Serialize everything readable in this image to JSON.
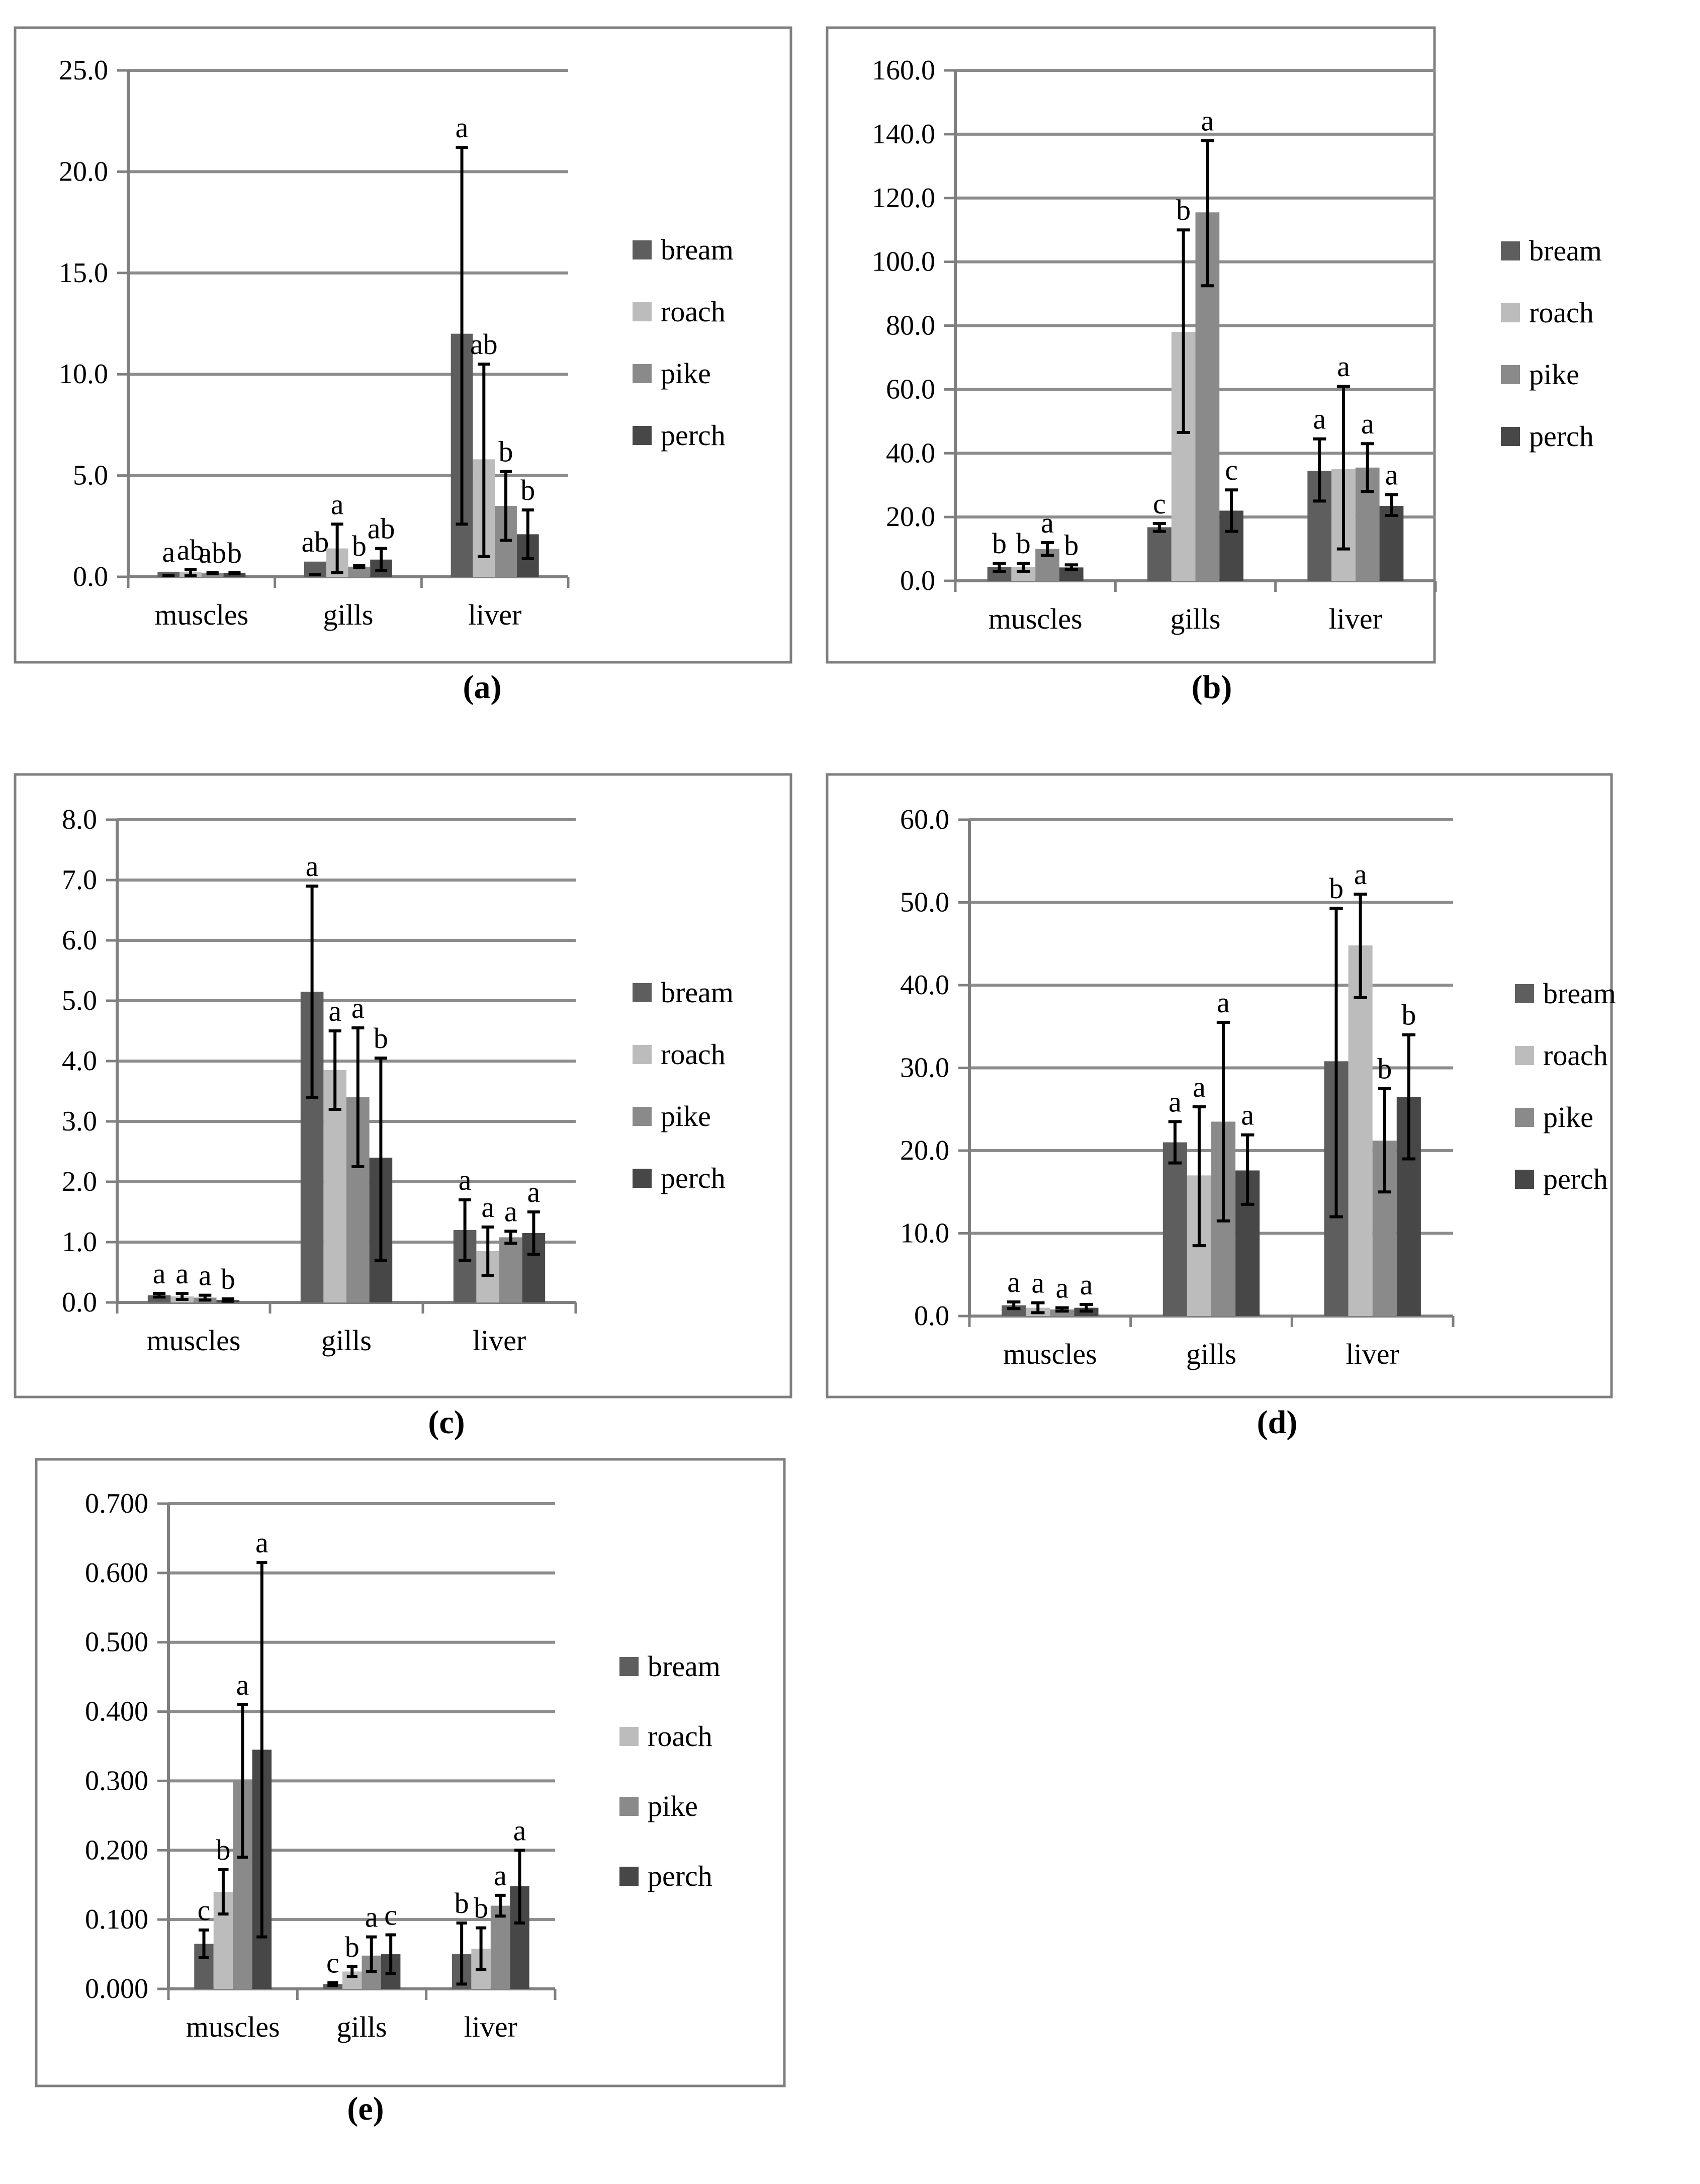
{
  "legend_entries": [
    "bream",
    "roach",
    "pike",
    "perch"
  ],
  "colors": {
    "bream": "#5e5e5e",
    "roach": "#bcbcbc",
    "pike": "#8a8a8a",
    "perch": "#474747",
    "grid": "#8c8c8c",
    "frame": "#7f7f7f",
    "axis": "#7f7f7f",
    "error_bar": "#000000"
  },
  "chart_data": [
    {
      "type": "bar",
      "panel": "(a)",
      "categories": [
        "muscles",
        "gills",
        "liver"
      ],
      "ylim": [
        0,
        25
      ],
      "ystep": 5,
      "ytick_labels": [
        "0.0",
        "5.0",
        "10.0",
        "15.0",
        "20.0",
        "25.0"
      ],
      "series": [
        {
          "name": "bream",
          "values": [
            0.25,
            0.75,
            12.0
          ],
          "err_low": [
            0.05,
            0.1,
            2.6
          ],
          "err_high": [
            0.05,
            0.1,
            21.2
          ],
          "labels": [
            "a",
            "ab",
            "a"
          ]
        },
        {
          "name": "roach",
          "values": [
            0.25,
            1.4,
            5.8
          ],
          "err_low": [
            0.05,
            0.2,
            1.0
          ],
          "err_high": [
            0.35,
            2.6,
            10.5
          ],
          "labels": [
            "ab",
            "a",
            "ab"
          ]
        },
        {
          "name": "pike",
          "values": [
            0.2,
            0.5,
            3.5
          ],
          "err_low": [
            0.15,
            0.45,
            1.8
          ],
          "err_high": [
            0.2,
            0.55,
            5.2
          ],
          "labels": [
            "ab",
            "b",
            "b"
          ]
        },
        {
          "name": "perch",
          "values": [
            0.2,
            0.85,
            2.1
          ],
          "err_low": [
            0.15,
            0.3,
            0.9
          ],
          "err_high": [
            0.2,
            1.4,
            3.3
          ],
          "labels": [
            "b",
            "ab",
            "b"
          ]
        }
      ]
    },
    {
      "type": "bar",
      "panel": "(b)",
      "categories": [
        "muscles",
        "gills",
        "liver"
      ],
      "ylim": [
        0,
        160
      ],
      "ystep": 20,
      "ytick_labels": [
        "0.0",
        "20.0",
        "40.0",
        "60.0",
        "80.0",
        "100.0",
        "120.0",
        "140.0",
        "160.0"
      ],
      "series": [
        {
          "name": "bream",
          "values": [
            4.3,
            16.8,
            34.5
          ],
          "err_low": [
            3.0,
            15.5,
            25.0
          ],
          "err_high": [
            5.5,
            18.0,
            44.5
          ],
          "labels": [
            "b",
            "c",
            "a"
          ]
        },
        {
          "name": "roach",
          "values": [
            4.3,
            78.0,
            35.0
          ],
          "err_low": [
            3.0,
            46.5,
            10.0
          ],
          "err_high": [
            5.5,
            110.0,
            61.0
          ],
          "labels": [
            "b",
            "b",
            "a"
          ]
        },
        {
          "name": "pike",
          "values": [
            10.0,
            115.5,
            35.5
          ],
          "err_low": [
            8.0,
            92.5,
            28.0
          ],
          "err_high": [
            12.0,
            138.0,
            43.0
          ],
          "labels": [
            "a",
            "a",
            "a"
          ]
        },
        {
          "name": "perch",
          "values": [
            4.2,
            22.0,
            23.5
          ],
          "err_low": [
            3.5,
            15.5,
            20.5
          ],
          "err_high": [
            5.0,
            28.5,
            27.0
          ],
          "labels": [
            "b",
            "c",
            "a"
          ]
        }
      ]
    },
    {
      "type": "bar",
      "panel": "(c)",
      "categories": [
        "muscles",
        "gills",
        "liver"
      ],
      "ylim": [
        0,
        8
      ],
      "ystep": 1,
      "ytick_labels": [
        "0.0",
        "1.0",
        "2.0",
        "3.0",
        "4.0",
        "5.0",
        "6.0",
        "7.0",
        "8.0"
      ],
      "series": [
        {
          "name": "bream",
          "values": [
            0.12,
            5.15,
            1.2
          ],
          "err_low": [
            0.09,
            3.4,
            0.7
          ],
          "err_high": [
            0.15,
            6.9,
            1.7
          ],
          "labels": [
            "a",
            "a",
            "a"
          ]
        },
        {
          "name": "roach",
          "values": [
            0.1,
            3.85,
            0.85
          ],
          "err_low": [
            0.05,
            3.2,
            0.45
          ],
          "err_high": [
            0.15,
            4.5,
            1.25
          ],
          "labels": [
            "a",
            "a",
            "a"
          ]
        },
        {
          "name": "pike",
          "values": [
            0.08,
            3.4,
            1.08
          ],
          "err_low": [
            0.04,
            2.25,
            0.98
          ],
          "err_high": [
            0.12,
            4.55,
            1.18
          ],
          "labels": [
            "a",
            "a",
            "a"
          ]
        },
        {
          "name": "perch",
          "values": [
            0.04,
            2.4,
            1.15
          ],
          "err_low": [
            0.02,
            0.7,
            0.8
          ],
          "err_high": [
            0.06,
            4.05,
            1.5
          ],
          "labels": [
            "b",
            "b",
            "a"
          ]
        }
      ]
    },
    {
      "type": "bar",
      "panel": "(d)",
      "categories": [
        "muscles",
        "gills",
        "liver"
      ],
      "ylim": [
        0,
        60
      ],
      "ystep": 10,
      "ytick_labels": [
        "0.0",
        "10.0",
        "20.0",
        "30.0",
        "40.0",
        "50.0",
        "60.0"
      ],
      "series": [
        {
          "name": "bream",
          "values": [
            1.3,
            21.0,
            30.8
          ],
          "err_low": [
            0.9,
            18.5,
            12.0
          ],
          "err_high": [
            1.7,
            23.5,
            49.3
          ],
          "labels": [
            "a",
            "a",
            "b"
          ]
        },
        {
          "name": "roach",
          "values": [
            1.0,
            17.0,
            44.8
          ],
          "err_low": [
            0.4,
            8.5,
            38.5
          ],
          "err_high": [
            1.6,
            25.3,
            51.0
          ],
          "labels": [
            "a",
            "a",
            "a"
          ]
        },
        {
          "name": "pike",
          "values": [
            0.8,
            23.5,
            21.2
          ],
          "err_low": [
            0.6,
            11.5,
            15.0
          ],
          "err_high": [
            1.0,
            35.5,
            27.5
          ],
          "labels": [
            "a",
            "a",
            "b"
          ]
        },
        {
          "name": "perch",
          "values": [
            1.0,
            17.6,
            26.5
          ],
          "err_low": [
            0.6,
            13.5,
            19.0
          ],
          "err_high": [
            1.4,
            21.9,
            34.0
          ],
          "labels": [
            "a",
            "a",
            "b"
          ]
        }
      ]
    },
    {
      "type": "bar",
      "panel": "(e)",
      "categories": [
        "muscles",
        "gills",
        "liver"
      ],
      "ylim": [
        0,
        0.7
      ],
      "ystep": 0.1,
      "ytick_labels": [
        "0.000",
        "0.100",
        "0.200",
        "0.300",
        "0.400",
        "0.500",
        "0.600",
        "0.700"
      ],
      "series": [
        {
          "name": "bream",
          "values": [
            0.065,
            0.007,
            0.05
          ],
          "err_low": [
            0.045,
            0.005,
            0.007
          ],
          "err_high": [
            0.085,
            0.009,
            0.095
          ],
          "labels": [
            "c",
            "c",
            "b"
          ]
        },
        {
          "name": "roach",
          "values": [
            0.14,
            0.025,
            0.058
          ],
          "err_low": [
            0.108,
            0.018,
            0.028
          ],
          "err_high": [
            0.172,
            0.032,
            0.088
          ],
          "labels": [
            "b",
            "b",
            "b"
          ]
        },
        {
          "name": "pike",
          "values": [
            0.3,
            0.048,
            0.12
          ],
          "err_low": [
            0.19,
            0.025,
            0.105
          ],
          "err_high": [
            0.41,
            0.075,
            0.135
          ],
          "labels": [
            "a",
            "a",
            "a"
          ]
        },
        {
          "name": "perch",
          "values": [
            0.345,
            0.05,
            0.148
          ],
          "err_low": [
            0.075,
            0.022,
            0.095
          ],
          "err_high": [
            0.615,
            0.078,
            0.2
          ],
          "labels": [
            "a",
            "c",
            "a"
          ]
        }
      ]
    }
  ]
}
